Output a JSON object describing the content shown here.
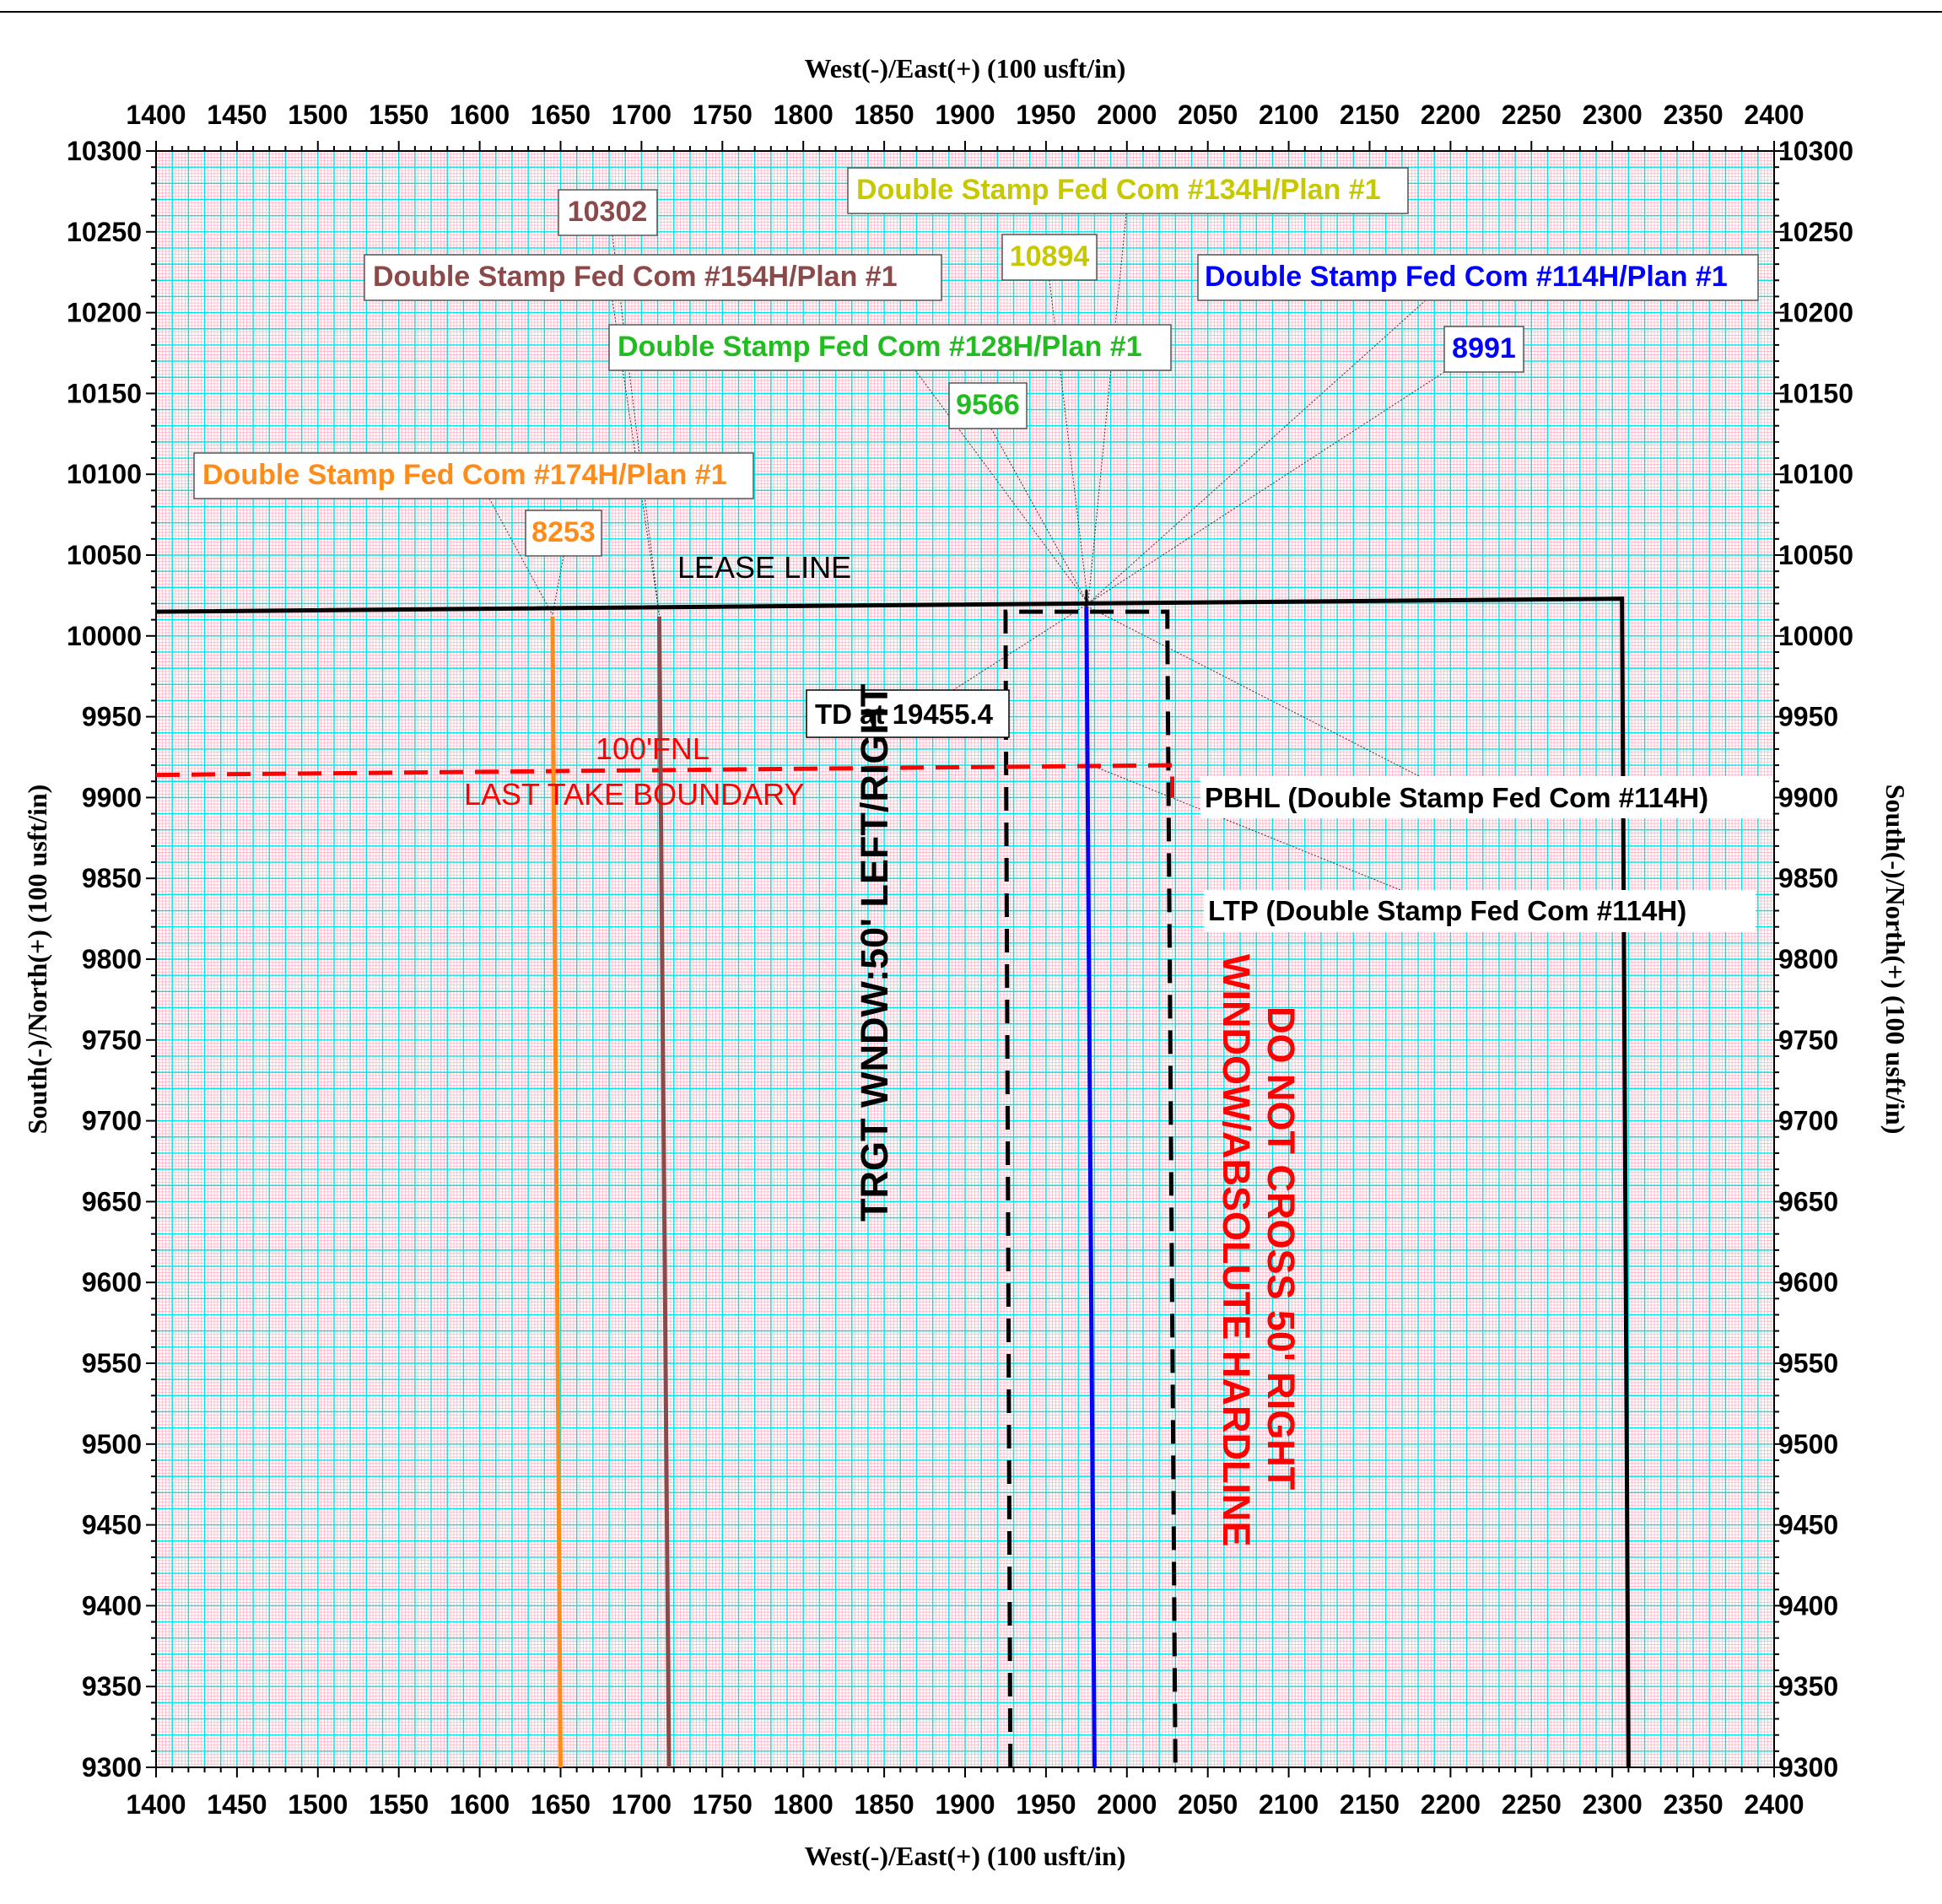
{
  "chart_data": {
    "type": "line",
    "title": "",
    "xlabel": "West(-)/East(+) (100 usft/in)",
    "ylabel": "South(-)/North(+) (100 usft/in)",
    "xlim": [
      1400,
      2400
    ],
    "ylim": [
      9300,
      10300
    ],
    "x_ticks": [
      1400,
      1450,
      1500,
      1550,
      1600,
      1650,
      1700,
      1750,
      1800,
      1850,
      1900,
      1950,
      2000,
      2050,
      2100,
      2150,
      2200,
      2250,
      2300,
      2350,
      2400
    ],
    "y_ticks": [
      9300,
      9350,
      9400,
      9450,
      9500,
      9550,
      9600,
      9650,
      9700,
      9750,
      9800,
      9850,
      9900,
      9950,
      10000,
      10050,
      10100,
      10150,
      10200,
      10250,
      10300
    ],
    "x_tick_labels": [
      "1400",
      "1450",
      "1500",
      "1550",
      "1600",
      "1650",
      "1700",
      "1750",
      "1800",
      "1850",
      "1900",
      "1950",
      "2000",
      "2050",
      "2100",
      "2150",
      "2200",
      "2250",
      "2300",
      "2350",
      "2400"
    ],
    "y_tick_labels": [
      "9300",
      "9350",
      "9400",
      "9450",
      "9500",
      "9550",
      "9600",
      "9650",
      "9700",
      "9750",
      "9800",
      "9850",
      "9900",
      "9950",
      "10000",
      "10050",
      "10100",
      "10150",
      "10200",
      "10250",
      "10300"
    ],
    "grid": true,
    "grid_color": "#00e5e5",
    "minor_grid_color": "#ffb3c6",
    "series": [
      {
        "key": "s174",
        "points": [
          [
            1650,
            9300
          ],
          [
            1645,
            10012
          ]
        ],
        "color": "#ff8c1a"
      },
      {
        "key": "s154",
        "points": [
          [
            1717,
            9300
          ],
          [
            1711,
            10012
          ]
        ],
        "color": "#8b4a4a"
      },
      {
        "key": "s114",
        "points": [
          [
            1980,
            9300
          ],
          [
            1975,
            10018
          ]
        ],
        "color": "#0000ff"
      }
    ],
    "boundaries": [
      {
        "key": "lease",
        "points": [
          [
            1400,
            10015
          ],
          [
            2306,
            10023
          ],
          [
            2310,
            9300
          ]
        ],
        "color": "#000000",
        "style": "solid"
      },
      {
        "key": "target-window",
        "points": [
          [
            1928,
            9300
          ],
          [
            1925,
            10002
          ],
          [
            1925,
            10015
          ],
          [
            2025,
            10015
          ],
          [
            2025,
            10002
          ],
          [
            2030,
            9300
          ]
        ],
        "color": "#000000",
        "style": "dashed"
      },
      {
        "key": "last-take",
        "points": [
          [
            1400,
            9914
          ],
          [
            2028,
            9920
          ],
          [
            2028,
            9900
          ]
        ],
        "color": "#ff0000",
        "style": "dashed"
      }
    ],
    "labels": {
      "lease_line": "LEASE LINE",
      "fnl": "100'FNL",
      "last_take": "LAST TAKE BOUNDARY",
      "target_window": "TRGT WNDW:50' LEFT/RIGHT",
      "hardline_1": "DO NOT CROSS 50' RIGHT",
      "hardline_2": "WINDOW/ABSOLUTE HARDLINE",
      "td": "TD at 19455.4",
      "pbhl": "PBHL (Double Stamp Fed Com #114H)",
      "ltp": "LTP (Double Stamp Fed Com #114H)"
    },
    "callouts": [
      {
        "key": "name174",
        "text": "Double Stamp Fed Com #174H/Plan #1",
        "color": "#ff8c1a",
        "anchor": [
          1645,
          10013
        ]
      },
      {
        "key": "num174",
        "text": "8253",
        "color": "#ff8c1a",
        "anchor": [
          1645,
          10013
        ]
      },
      {
        "key": "name154",
        "text": "Double Stamp Fed Com #154H/Plan #1",
        "color": "#8b4a4a",
        "anchor": [
          1711,
          10013
        ]
      },
      {
        "key": "num154",
        "text": "10302",
        "color": "#8b4a4a",
        "anchor": [
          1711,
          10013
        ]
      },
      {
        "key": "name128",
        "text": "Double Stamp Fed Com #128H/Plan #1",
        "color": "#22bb22",
        "anchor": [
          1976,
          10020
        ]
      },
      {
        "key": "num128",
        "text": "9566",
        "color": "#22bb22",
        "anchor": [
          1976,
          10020
        ]
      },
      {
        "key": "name134",
        "text": "Double Stamp Fed Com #134H/Plan #1",
        "color": "#c8c800",
        "anchor": [
          1976,
          10020
        ]
      },
      {
        "key": "num134",
        "text": "10894",
        "color": "#c8c800",
        "anchor": [
          1976,
          10020
        ]
      },
      {
        "key": "name114",
        "text": "Double Stamp Fed Com #114H/Plan #1",
        "color": "#0000ff",
        "anchor": [
          1976,
          10020
        ]
      },
      {
        "key": "num114",
        "text": "8991",
        "color": "#0000ff",
        "anchor": [
          1976,
          10020
        ]
      }
    ]
  }
}
